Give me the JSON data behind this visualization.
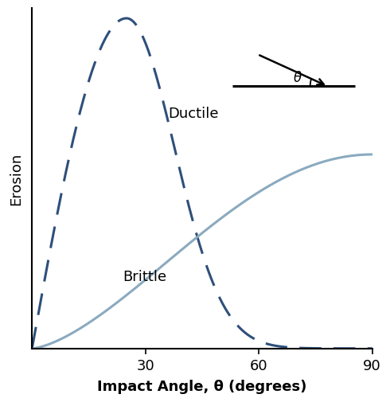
{
  "title": "",
  "xlabel": "Impact Angle, θ (degrees)",
  "ylabel": "Erosion",
  "xlim": [
    0,
    90
  ],
  "ylim": [
    0,
    1.0
  ],
  "xticks": [
    30,
    60,
    90
  ],
  "ductile_color": "#2e4f7a",
  "brittle_color": "#8aaabf",
  "ductile_label": "Ductile",
  "brittle_label": "Brittle",
  "background_color": "#ffffff",
  "xlabel_fontsize": 13,
  "ylabel_fontsize": 13,
  "label_fontsize": 13,
  "tick_fontsize": 13
}
